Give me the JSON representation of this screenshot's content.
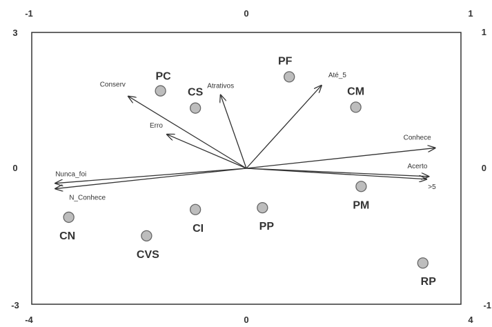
{
  "chart_data": {
    "type": "scatter",
    "title": "",
    "xlabel": "",
    "ylabel": "",
    "axes": {
      "bottom": {
        "range": [
          -4,
          4
        ],
        "ticks": [
          "-4",
          "0",
          "4"
        ]
      },
      "left": {
        "range": [
          -3,
          3
        ],
        "ticks": [
          "-3",
          "0",
          "3"
        ]
      },
      "top": {
        "range": [
          -1,
          1
        ],
        "ticks": [
          "-1",
          "0",
          "1"
        ]
      },
      "right": {
        "range": [
          -1,
          1
        ],
        "ticks": [
          "-1",
          "0",
          "1"
        ]
      }
    },
    "grid": false,
    "legend": "none",
    "colors": {
      "point_fill": "#bdbdbd",
      "point_stroke": "#666666",
      "vector": "#333333",
      "frame": "#333333",
      "text": "#333333"
    },
    "series": [
      {
        "marker": "circle",
        "points": [
          {
            "label": "PC",
            "x": -1.6,
            "y": 1.71
          },
          {
            "label": "CS",
            "x": -0.95,
            "y": 1.33
          },
          {
            "label": "PF",
            "x": 0.8,
            "y": 2.02
          },
          {
            "label": "CM",
            "x": 2.04,
            "y": 1.35
          },
          {
            "label": "CN",
            "x": -3.31,
            "y": -1.08
          },
          {
            "label": "CVS",
            "x": -1.86,
            "y": -1.49
          },
          {
            "label": "CI",
            "x": -0.95,
            "y": -0.91
          },
          {
            "label": "PP",
            "x": 0.3,
            "y": -0.87
          },
          {
            "label": "PM",
            "x": 2.14,
            "y": -0.4
          },
          {
            "label": "RP",
            "x": 3.29,
            "y": -2.09
          }
        ]
      },
      {
        "marker": "arrow",
        "origin": [
          0,
          0
        ],
        "vectors": [
          {
            "label": "Conserv",
            "x": -0.55,
            "y": 0.53
          },
          {
            "label": "Atrativos",
            "x": -0.12,
            "y": 0.54
          },
          {
            "label": "Até_5",
            "x": 0.35,
            "y": 0.61
          },
          {
            "label": "Erro",
            "x": -0.37,
            "y": 0.25
          },
          {
            "label": "Conhece",
            "x": 0.88,
            "y": 0.15
          },
          {
            "label": "Acerto",
            "x": 0.85,
            "y": -0.06
          },
          {
            "label": ">5",
            "x": 0.84,
            "y": -0.08
          },
          {
            "label": "Nunca_foi",
            "x": -0.89,
            "y": -0.11
          },
          {
            "label": "N_Conhece",
            "x": -0.89,
            "y": -0.15
          }
        ]
      }
    ]
  }
}
